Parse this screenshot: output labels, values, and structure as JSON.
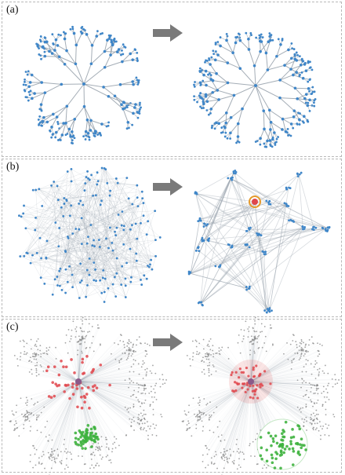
{
  "panels": [
    {
      "id": "a",
      "label": "(a)"
    },
    {
      "id": "b",
      "label": "(b)"
    },
    {
      "id": "c",
      "label": "(c)"
    }
  ],
  "colors": {
    "node_blue": "#3f86c8",
    "edge_gray": "#9aa4ae",
    "node_gray": "#8d8d8d",
    "node_red": "#e0474c",
    "node_green": "#3fb23f",
    "highlight_orange": "#e59a2c",
    "arrow": "#7a7a7a",
    "border": "#b8b8b8"
  },
  "icons": {
    "arrow": "right-arrow-icon"
  }
}
